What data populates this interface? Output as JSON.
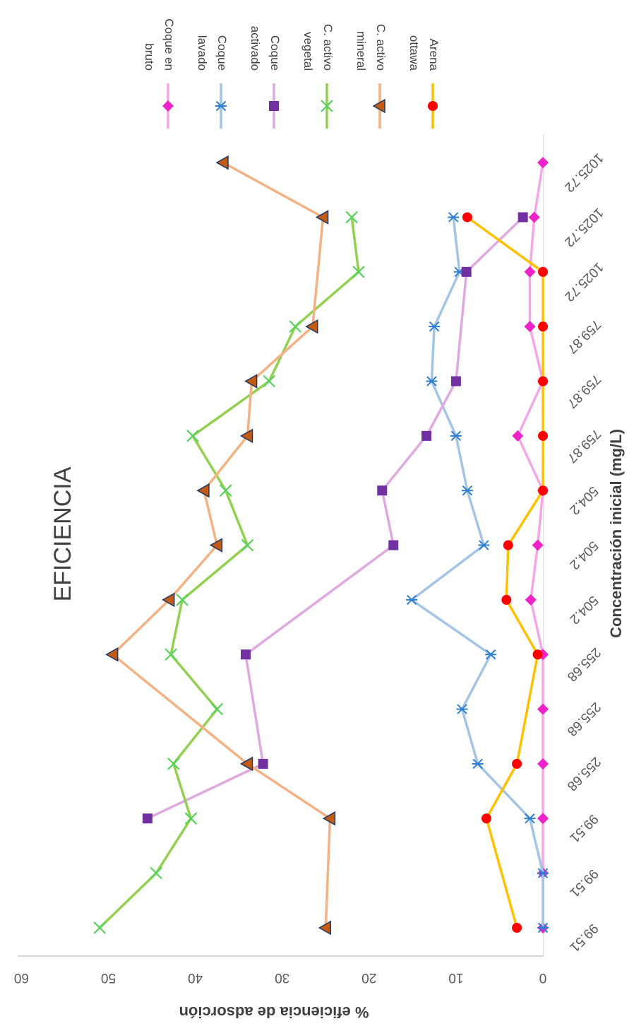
{
  "chart_data": {
    "type": "line",
    "title": "EFICIENCIA",
    "xlabel": "Concentración inicial (mg/L)",
    "ylabel": "% eficiencia de adsorción",
    "ylim": [
      0,
      60
    ],
    "yticks": [
      "0",
      "10",
      "20",
      "30",
      "40",
      "50",
      "60"
    ],
    "categories": [
      "99.51",
      "99.51",
      "99.51",
      "255.68",
      "255.68",
      "255.68",
      "504.2",
      "504.2",
      "504.2",
      "759.87",
      "759.87",
      "759.87",
      "1025.72",
      "1025.72",
      "1025.72"
    ],
    "grid": false,
    "legend_position": "top",
    "orientation": "rotated 90° clockwise",
    "series": [
      {
        "name": "Coque en bruto",
        "line_color": "#F4A6E6",
        "marker": "diamond",
        "marker_color": "#EE22C8",
        "values": [
          0,
          0,
          0,
          0,
          0,
          0,
          1.4,
          0.6,
          0,
          2.9,
          0,
          1.5,
          1.5,
          1,
          0
        ]
      },
      {
        "name": "Coque lavado",
        "line_color": "#A4C4E6",
        "marker": "asterisk",
        "marker_color": "#2F7FD0",
        "values": [
          0,
          0,
          1.5,
          7.5,
          9.3,
          6,
          15.1,
          6.8,
          8.7,
          10,
          12.8,
          12.5,
          9.6,
          10.3,
          null
        ]
      },
      {
        "name": "Coque activado",
        "line_color": "#E0A8E0",
        "marker": "square",
        "marker_color": "#7030A0",
        "values": [
          null,
          null,
          45.5,
          32.2,
          null,
          34.2,
          null,
          17.2,
          18.5,
          13.4,
          10,
          null,
          8.8,
          2.3,
          null
        ]
      },
      {
        "name": "C. activo vegetal",
        "line_color": "#92D050",
        "marker": "x",
        "marker_color": "#56D35A",
        "values": [
          51,
          44.5,
          40.5,
          42.5,
          37.5,
          42.8,
          41.5,
          34,
          36.5,
          40.3,
          31.5,
          28.5,
          21.2,
          22,
          null
        ]
      },
      {
        "name": "C. activo mineral",
        "line_color": "#F4B183",
        "marker": "triangle",
        "marker_color": "#C55A11",
        "values": [
          25,
          null,
          24.5,
          34,
          null,
          49.5,
          43,
          37.5,
          39,
          34,
          33.5,
          26.5,
          null,
          25.3,
          36.8
        ]
      },
      {
        "name": "Arena ottawa",
        "line_color": "#FFC000",
        "marker": "circle",
        "marker_color": "#FF0000",
        "values": [
          3,
          null,
          6.5,
          3,
          null,
          0.6,
          4.2,
          4,
          0,
          0,
          0,
          0,
          0,
          8.7,
          null
        ]
      }
    ]
  }
}
